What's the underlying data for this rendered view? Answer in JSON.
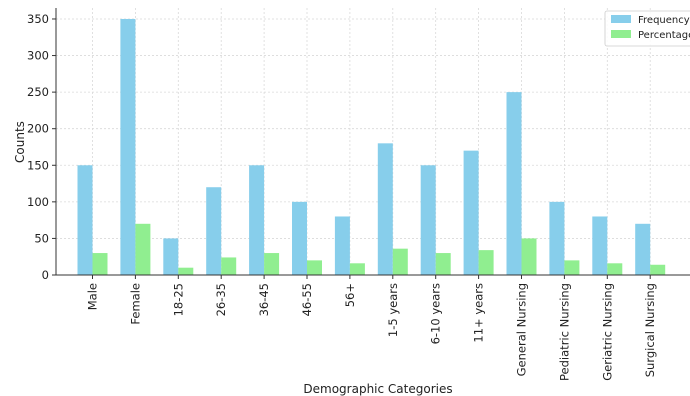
{
  "chart_data": {
    "type": "bar",
    "title": "",
    "xlabel": "Demographic Categories",
    "ylabel": "Counts",
    "ylim": [
      0,
      365
    ],
    "yticks": [
      0,
      50,
      100,
      150,
      200,
      250,
      300,
      350
    ],
    "grid": true,
    "legend_position": "top-right",
    "categories": [
      "Male",
      "Female",
      "18-25",
      "26-35",
      "36-45",
      "46-55",
      "56+",
      "1-5 years",
      "6-10 years",
      "11+ years",
      "General Nursing",
      "Pediatric Nursing",
      "Geriatric Nursing",
      "Surgical Nursing"
    ],
    "series": [
      {
        "name": "Frequency",
        "color": "#87ceeb",
        "values": [
          150,
          350,
          50,
          120,
          150,
          100,
          80,
          180,
          150,
          170,
          250,
          100,
          80,
          70
        ]
      },
      {
        "name": "Percentage",
        "color": "#90ee90",
        "values": [
          30,
          70,
          10,
          24,
          30,
          20,
          16,
          36,
          30,
          34,
          50,
          20,
          16,
          14
        ]
      }
    ]
  }
}
